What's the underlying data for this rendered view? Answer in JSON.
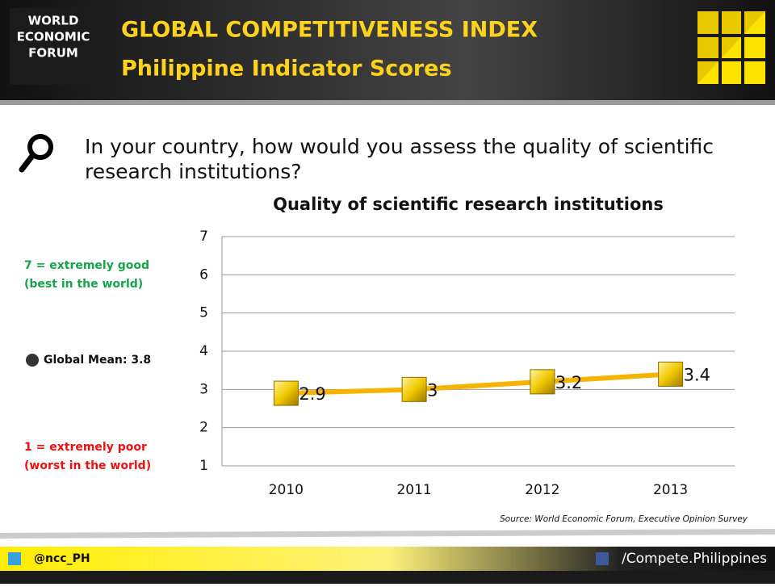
{
  "header": {
    "logo": [
      "WORLD",
      "ECONOMIC",
      "FORUM"
    ],
    "title": "GLOBAL COMPETITIVENESS INDEX",
    "subtitle": "Philippine Indicator Scores"
  },
  "question": [
    "In your country, how would you assess the quality of scientific",
    "research institutions?"
  ],
  "side_labels": {
    "best": [
      "7 = extremely good",
      "(best in the world)"
    ],
    "mean": "Global Mean: 3.8",
    "worst": [
      "1 = extremely poor",
      "(worst in the world)"
    ]
  },
  "chart_data": {
    "type": "line",
    "title": "Quality of scientific research institutions",
    "categories": [
      "2010",
      "2011",
      "2012",
      "2013"
    ],
    "values": [
      2.9,
      3,
      3.2,
      3.4
    ],
    "color": "#f5b400",
    "ylim": [
      1,
      7
    ],
    "yticks": [
      1,
      2,
      3,
      4,
      5,
      6,
      7
    ],
    "grid": true
  },
  "source": "Source: World Economic Forum, Executive Opinion Survey",
  "footer": {
    "twitter": "@ncc_PH",
    "facebook": "/Compete.Philippines"
  }
}
